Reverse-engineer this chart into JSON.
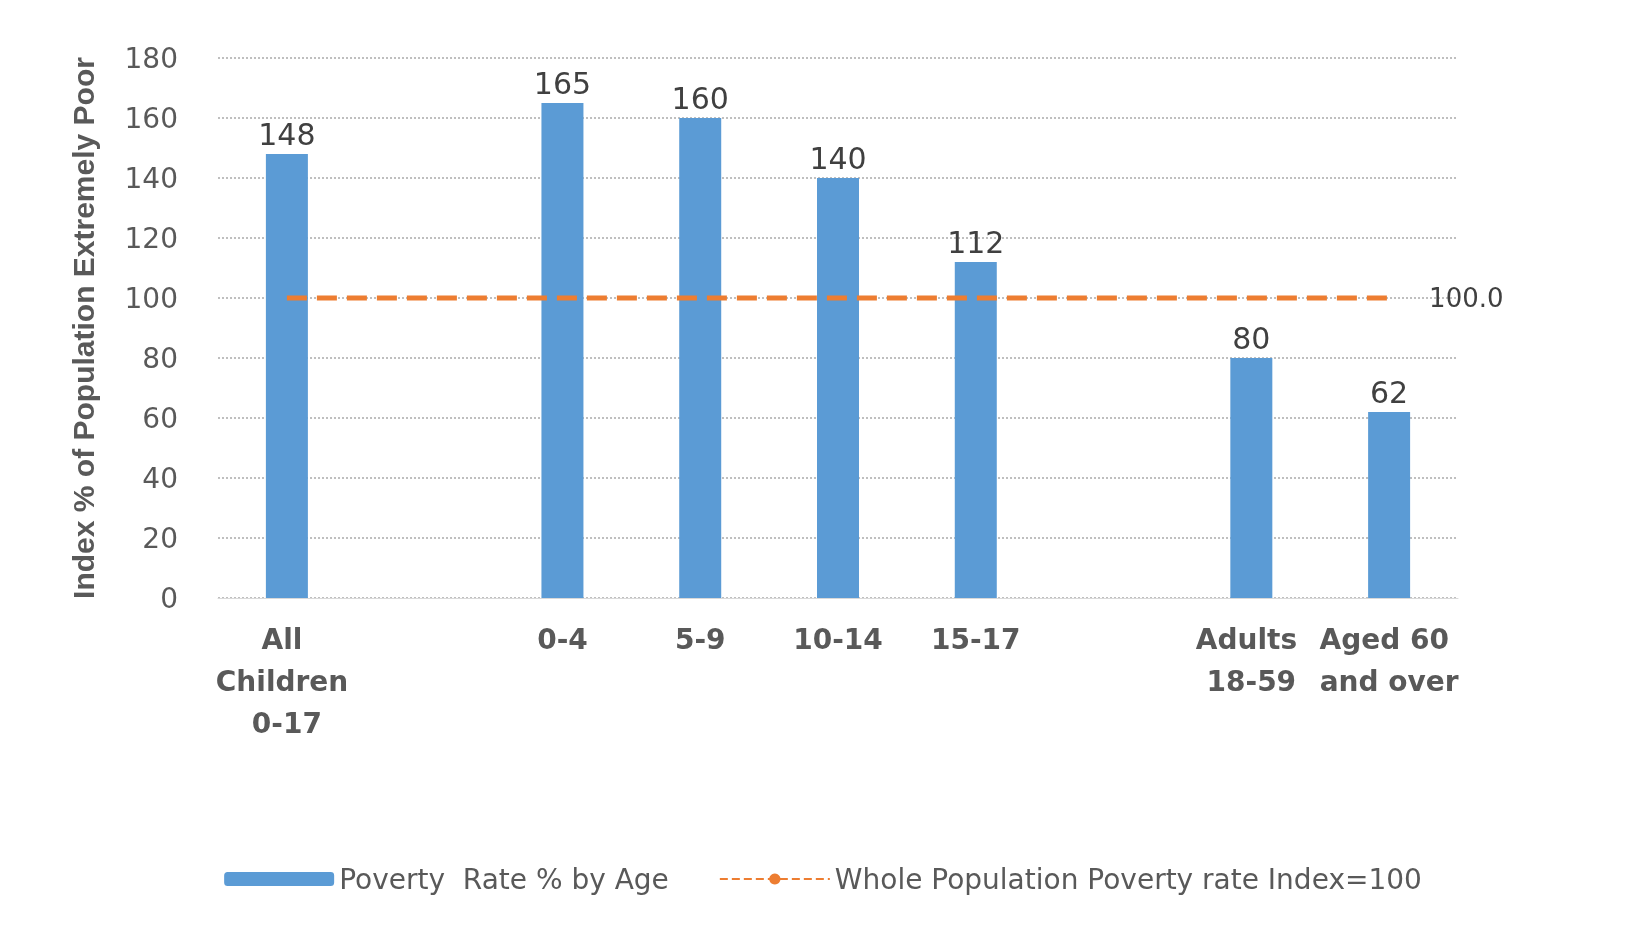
{
  "chart_data": {
    "type": "bar",
    "ylabel": "Index % of Population Extremely Poor",
    "categories": [
      "All Children 0-17",
      null,
      "0-4",
      "5-9",
      "10-14",
      "15-17",
      null,
      "Adults 18-59",
      "Aged 60 and over"
    ],
    "series": [
      {
        "name": "Poverty  Rate % by Age",
        "color": "#5b9bd5",
        "values": [
          148,
          null,
          165,
          160,
          140,
          112,
          null,
          80,
          62
        ],
        "value_labels": [
          "148",
          null,
          "165",
          "160",
          "140",
          "112",
          null,
          "80",
          "62"
        ]
      },
      {
        "name": "Whole Population Poverty rate Index=100",
        "type": "line",
        "color": "#ed7d31",
        "line_style": "dashed",
        "marker": "none",
        "values": [
          100,
          100,
          100,
          100,
          100,
          100,
          100,
          100,
          100
        ],
        "value_labels": [
          null,
          null,
          null,
          null,
          null,
          null,
          null,
          null,
          "100.0"
        ]
      }
    ],
    "ylim": [
      0,
      180
    ],
    "yticks": [
      0,
      20,
      40,
      60,
      80,
      100,
      120,
      140,
      160,
      180
    ],
    "grid": "y",
    "legend": "bottom"
  }
}
